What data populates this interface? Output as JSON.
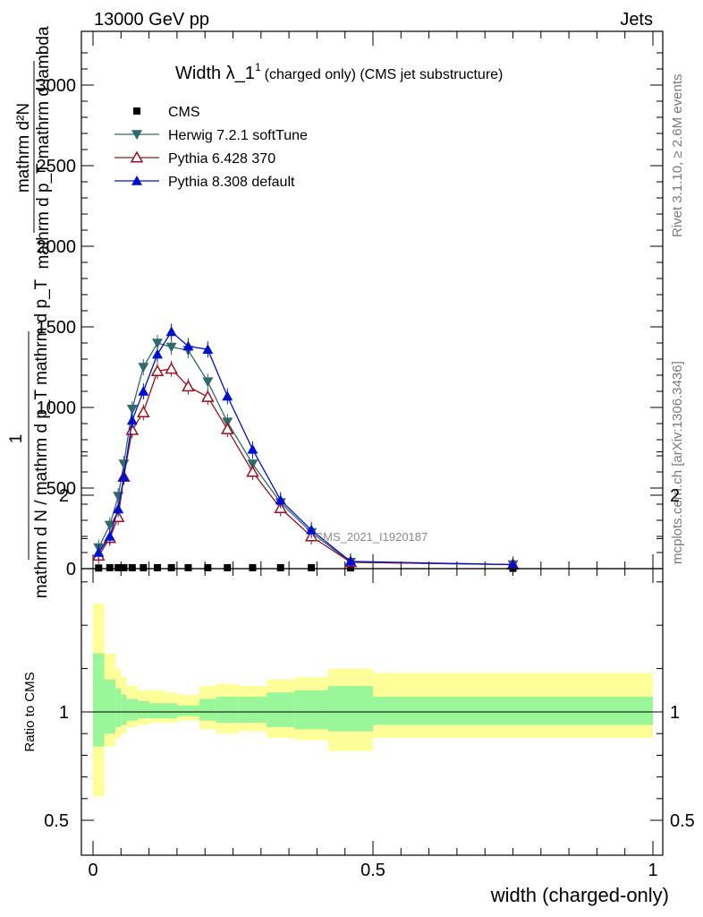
{
  "header": {
    "left": "13000 GeV pp",
    "right": "Jets"
  },
  "side_labels": {
    "rivet": "Rivet 3.1.10, ≥ 2.6M events",
    "mcplots": "mcplots.cern.ch [arXiv:1306.3436]"
  },
  "watermark": "CMS_2021_I1920187",
  "chart_data": {
    "type": "line",
    "title": "Width λ_1¹ (charged only) (CMS jet substructure)",
    "title_main": "Width λ_1",
    "title_sup": "1",
    "title_rest": "(charged only) (CMS jet substructure)",
    "ylabel_upper": [
      "mathrm d²N",
      "mathrm d p_T mathrm d lambda"
    ],
    "ylabel_frac_num": "1",
    "ylabel_frac_den": "mathrm d N / mathrm d p_T mathrm d p_T",
    "xlabel": "width (charged-only)",
    "ratio_ylabel": "Ratio to CMS",
    "xlim": [
      0,
      1
    ],
    "ylim": [
      0,
      3000
    ],
    "ratio_ylim": [
      0.4,
      2.35
    ],
    "x_ticks": [
      0,
      0.5,
      1
    ],
    "x_tick_labels": [
      "0",
      "0.5",
      "1"
    ],
    "y_ticks": [
      0,
      500,
      1000,
      1500,
      2000,
      2500,
      3000
    ],
    "y_tick_labels": [
      "0",
      "500",
      "1000",
      "1500",
      "2000",
      "2500",
      "3000"
    ],
    "ratio_ticks": [
      0.5,
      1,
      2
    ],
    "ratio_tick_labels": [
      "0.5",
      "1",
      "2"
    ],
    "legend_position": "top-left",
    "bin_edges": [
      0,
      0.02,
      0.04,
      0.05,
      0.06,
      0.08,
      0.1,
      0.13,
      0.15,
      0.19,
      0.22,
      0.26,
      0.31,
      0.36,
      0.42,
      0.5,
      1.0
    ],
    "x": [
      0.01,
      0.03,
      0.045,
      0.055,
      0.07,
      0.09,
      0.115,
      0.14,
      0.17,
      0.205,
      0.24,
      0.285,
      0.335,
      0.39,
      0.46,
      0.75
    ],
    "ratio_band_inner": [
      [
        0.84,
        1.27
      ],
      [
        0.9,
        1.15
      ],
      [
        0.93,
        1.11
      ],
      [
        0.94,
        1.08
      ],
      [
        0.96,
        1.06
      ],
      [
        0.97,
        1.05
      ],
      [
        0.97,
        1.04
      ],
      [
        0.97,
        1.04
      ],
      [
        0.98,
        1.03
      ],
      [
        0.96,
        1.06
      ],
      [
        0.95,
        1.07
      ],
      [
        0.95,
        1.07
      ],
      [
        0.93,
        1.09
      ],
      [
        0.92,
        1.1
      ],
      [
        0.91,
        1.12
      ],
      [
        0.94,
        1.07
      ]
    ],
    "ratio_band_outer": [
      [
        0.61,
        1.5
      ],
      [
        0.84,
        1.27
      ],
      [
        0.88,
        1.2
      ],
      [
        0.9,
        1.16
      ],
      [
        0.93,
        1.12
      ],
      [
        0.94,
        1.1
      ],
      [
        0.95,
        1.1
      ],
      [
        0.95,
        1.09
      ],
      [
        0.96,
        1.08
      ],
      [
        0.92,
        1.12
      ],
      [
        0.9,
        1.13
      ],
      [
        0.91,
        1.12
      ],
      [
        0.88,
        1.15
      ],
      [
        0.87,
        1.16
      ],
      [
        0.82,
        1.2
      ],
      [
        0.88,
        1.18
      ]
    ],
    "series": [
      {
        "name": "CMS",
        "color": "#000000",
        "marker": "square",
        "values": [
          4,
          6,
          6,
          6,
          6,
          6,
          6,
          6,
          6,
          6,
          6,
          6,
          6,
          6,
          5,
          2
        ]
      },
      {
        "name": "Herwig 7.2.1 softTune",
        "color": "#2f6b6b",
        "marker": "triangle-down",
        "values": [
          130,
          270,
          450,
          650,
          990,
          1250,
          1400,
          1375,
          1355,
          1160,
          910,
          650,
          410,
          225,
          40,
          25
        ]
      },
      {
        "name": "Pythia 6.428 370",
        "color": "#a01020",
        "marker": "triangle-up-open",
        "values": [
          80,
          190,
          320,
          570,
          860,
          970,
          1225,
          1240,
          1130,
          1065,
          865,
          600,
          375,
          200,
          40,
          25
        ]
      },
      {
        "name": "Pythia 8.308 default",
        "color": "#0010d0",
        "marker": "triangle-up",
        "values": [
          100,
          200,
          370,
          570,
          920,
          1100,
          1330,
          1470,
          1380,
          1360,
          1070,
          740,
          425,
          240,
          45,
          25
        ]
      }
    ]
  }
}
